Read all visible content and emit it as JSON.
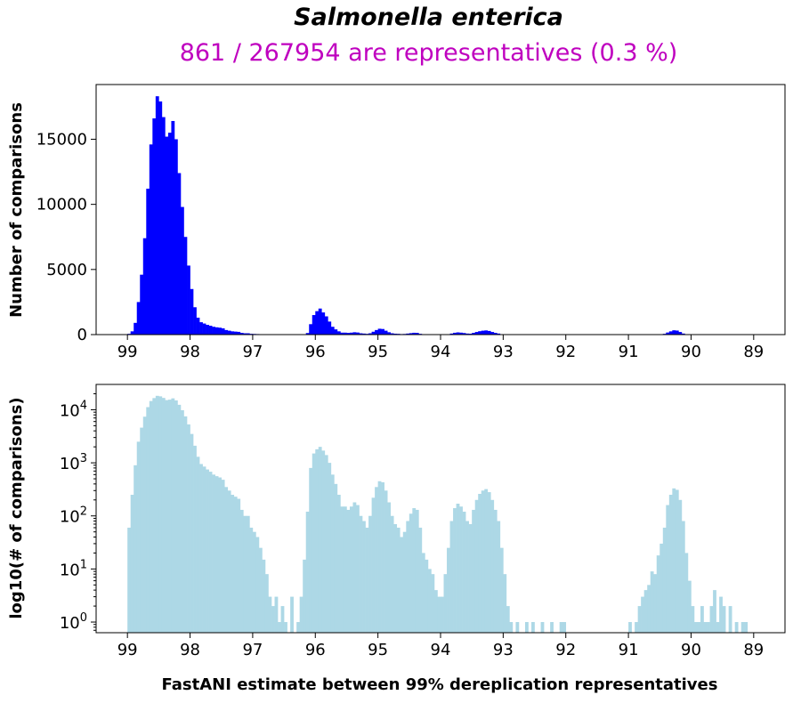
{
  "chart_data": [
    {
      "type": "bar",
      "title": "Salmonella enterica",
      "subtitle": "861 / 267954 are representatives (0.3 %)",
      "xlabel": "FastANI estimate between 99% dereplication representatives",
      "ylabel": "Number of comparisons",
      "xlim": [
        99.5,
        88.5
      ],
      "x_axis_reversed": true,
      "ylim": [
        0,
        19200
      ],
      "xticks": [
        "99",
        "98",
        "97",
        "96",
        "95",
        "94",
        "93",
        "92",
        "91",
        "90",
        "89"
      ],
      "yticks": [
        "0",
        "5000",
        "10000",
        "15000"
      ],
      "color": "#0000ff",
      "bin_width": 0.05,
      "bins": [
        [
          99.0,
          60
        ],
        [
          98.95,
          250
        ],
        [
          98.9,
          900
        ],
        [
          98.85,
          2500
        ],
        [
          98.8,
          4600
        ],
        [
          98.75,
          7400
        ],
        [
          98.7,
          11200
        ],
        [
          98.65,
          14600
        ],
        [
          98.6,
          16600
        ],
        [
          98.55,
          18300
        ],
        [
          98.5,
          17900
        ],
        [
          98.45,
          16700
        ],
        [
          98.4,
          15200
        ],
        [
          98.35,
          15500
        ],
        [
          98.3,
          16400
        ],
        [
          98.25,
          15000
        ],
        [
          98.2,
          12400
        ],
        [
          98.15,
          9800
        ],
        [
          98.1,
          7500
        ],
        [
          98.05,
          5300
        ],
        [
          98.0,
          3500
        ],
        [
          97.95,
          2100
        ],
        [
          97.9,
          1300
        ],
        [
          97.85,
          950
        ],
        [
          97.8,
          850
        ],
        [
          97.75,
          750
        ],
        [
          97.7,
          680
        ],
        [
          97.65,
          600
        ],
        [
          97.6,
          560
        ],
        [
          97.55,
          530
        ],
        [
          97.5,
          480
        ],
        [
          97.45,
          350
        ],
        [
          97.4,
          300
        ],
        [
          97.35,
          250
        ],
        [
          97.3,
          230
        ],
        [
          97.25,
          210
        ],
        [
          97.2,
          130
        ],
        [
          97.15,
          100
        ],
        [
          97.1,
          100
        ],
        [
          97.05,
          60
        ],
        [
          97.0,
          50
        ],
        [
          96.95,
          40
        ],
        [
          96.9,
          25
        ],
        [
          96.85,
          15
        ],
        [
          96.8,
          8
        ],
        [
          96.75,
          3
        ],
        [
          96.7,
          2
        ],
        [
          96.65,
          3
        ],
        [
          96.6,
          1
        ],
        [
          96.55,
          2
        ],
        [
          96.5,
          1
        ],
        [
          96.45,
          0
        ],
        [
          96.4,
          3
        ],
        [
          96.35,
          0
        ],
        [
          96.3,
          1
        ],
        [
          96.25,
          3
        ],
        [
          96.2,
          15
        ],
        [
          96.15,
          120
        ],
        [
          96.1,
          800
        ],
        [
          96.05,
          1500
        ],
        [
          96.0,
          1800
        ],
        [
          95.95,
          2000
        ],
        [
          95.9,
          1700
        ],
        [
          95.85,
          1400
        ],
        [
          95.8,
          1000
        ],
        [
          95.75,
          600
        ],
        [
          95.7,
          400
        ],
        [
          95.65,
          250
        ],
        [
          95.6,
          150
        ],
        [
          95.55,
          150
        ],
        [
          95.5,
          130
        ],
        [
          95.45,
          150
        ],
        [
          95.4,
          180
        ],
        [
          95.35,
          160
        ],
        [
          95.3,
          100
        ],
        [
          95.25,
          80
        ],
        [
          95.2,
          60
        ],
        [
          95.15,
          100
        ],
        [
          95.1,
          220
        ],
        [
          95.05,
          350
        ],
        [
          95.0,
          450
        ],
        [
          94.95,
          430
        ],
        [
          94.9,
          300
        ],
        [
          94.85,
          180
        ],
        [
          94.8,
          100
        ],
        [
          94.75,
          70
        ],
        [
          94.7,
          60
        ],
        [
          94.65,
          40
        ],
        [
          94.6,
          50
        ],
        [
          94.55,
          80
        ],
        [
          94.5,
          110
        ],
        [
          94.45,
          140
        ],
        [
          94.4,
          130
        ],
        [
          94.35,
          60
        ],
        [
          94.3,
          20
        ],
        [
          94.25,
          15
        ],
        [
          94.2,
          10
        ],
        [
          94.15,
          8
        ],
        [
          94.1,
          4
        ],
        [
          94.05,
          3
        ],
        [
          94.0,
          3
        ],
        [
          93.95,
          8
        ],
        [
          93.9,
          25
        ],
        [
          93.85,
          80
        ],
        [
          93.8,
          140
        ],
        [
          93.75,
          170
        ],
        [
          93.7,
          150
        ],
        [
          93.65,
          120
        ],
        [
          93.6,
          80
        ],
        [
          93.55,
          70
        ],
        [
          93.5,
          130
        ],
        [
          93.45,
          200
        ],
        [
          93.4,
          260
        ],
        [
          93.35,
          300
        ],
        [
          93.3,
          320
        ],
        [
          93.25,
          280
        ],
        [
          93.2,
          200
        ],
        [
          93.15,
          130
        ],
        [
          93.1,
          80
        ],
        [
          93.05,
          25
        ],
        [
          93.0,
          8
        ],
        [
          92.95,
          2
        ],
        [
          92.9,
          1
        ],
        [
          92.85,
          0
        ],
        [
          92.8,
          1
        ],
        [
          92.75,
          0
        ],
        [
          92.7,
          0
        ],
        [
          92.65,
          1
        ],
        [
          92.6,
          0
        ],
        [
          92.55,
          1
        ],
        [
          92.5,
          0
        ],
        [
          92.45,
          0
        ],
        [
          92.4,
          1
        ],
        [
          92.35,
          0
        ],
        [
          92.3,
          0
        ],
        [
          92.25,
          1
        ],
        [
          92.2,
          0
        ],
        [
          92.15,
          0
        ],
        [
          92.1,
          1
        ],
        [
          92.05,
          1
        ],
        [
          91.0,
          1
        ],
        [
          90.95,
          0
        ],
        [
          90.9,
          1
        ],
        [
          90.85,
          2
        ],
        [
          90.8,
          3
        ],
        [
          90.75,
          4
        ],
        [
          90.7,
          5
        ],
        [
          90.65,
          9
        ],
        [
          90.6,
          8
        ],
        [
          90.55,
          18
        ],
        [
          90.5,
          30
        ],
        [
          90.45,
          60
        ],
        [
          90.4,
          160
        ],
        [
          90.35,
          250
        ],
        [
          90.3,
          330
        ],
        [
          90.25,
          310
        ],
        [
          90.2,
          200
        ],
        [
          90.15,
          80
        ],
        [
          90.1,
          20
        ],
        [
          90.05,
          6
        ],
        [
          90.0,
          2
        ],
        [
          89.95,
          1
        ],
        [
          89.9,
          1
        ],
        [
          89.85,
          2
        ],
        [
          89.8,
          1
        ],
        [
          89.75,
          1
        ],
        [
          89.7,
          2
        ],
        [
          89.65,
          4
        ],
        [
          89.6,
          1
        ],
        [
          89.55,
          3
        ],
        [
          89.5,
          2
        ],
        [
          89.45,
          0
        ],
        [
          89.4,
          2
        ],
        [
          89.35,
          0
        ],
        [
          89.3,
          1
        ],
        [
          89.25,
          0
        ],
        [
          89.2,
          1
        ],
        [
          89.15,
          1
        ]
      ]
    },
    {
      "type": "bar",
      "ylabel": "log10(# of comparisons)",
      "xlim": [
        99.5,
        88.5
      ],
      "x_axis_reversed": true,
      "y_scale": "log",
      "ylim": [
        0.63,
        30000
      ],
      "xticks": [
        "99",
        "98",
        "97",
        "96",
        "95",
        "94",
        "93",
        "92",
        "91",
        "90",
        "89"
      ],
      "yticks": [
        {
          "base": "10",
          "exp": "0"
        },
        {
          "base": "10",
          "exp": "1"
        },
        {
          "base": "10",
          "exp": "2"
        },
        {
          "base": "10",
          "exp": "3"
        },
        {
          "base": "10",
          "exp": "4"
        }
      ],
      "color": "#add8e6",
      "same_bins_as_chart": 0
    }
  ]
}
